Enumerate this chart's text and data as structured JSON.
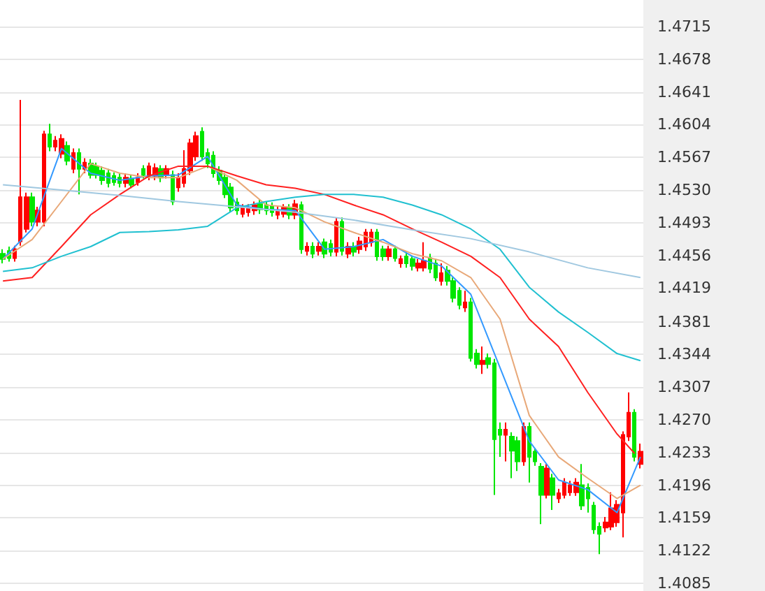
{
  "chart_data": {
    "type": "candlestick",
    "categories": [
      null,
      null,
      null,
      null,
      null,
      null,
      null,
      null,
      null,
      null,
      null,
      null,
      null,
      null,
      null,
      null,
      null,
      null,
      null,
      null,
      null,
      null,
      null,
      null,
      null,
      null,
      null,
      null,
      null,
      null,
      null,
      null,
      null,
      null,
      null,
      null,
      null,
      null,
      null,
      null,
      null,
      null,
      null,
      null,
      null,
      null,
      null,
      null,
      null,
      null,
      null,
      null,
      null,
      null,
      null,
      null,
      null,
      null,
      null,
      null,
      null,
      null,
      null,
      null,
      null,
      null,
      null,
      null,
      null,
      null,
      null,
      null,
      null,
      null,
      null,
      null,
      null,
      null,
      null,
      null,
      null,
      null,
      null,
      null,
      null,
      null,
      null,
      null,
      null,
      null,
      null,
      null,
      null,
      null,
      null,
      null,
      null,
      null,
      null,
      null,
      null,
      null,
      null,
      null,
      null,
      null,
      null,
      null,
      null,
      null
    ],
    "ohlc": [
      [
        1.4458,
        1.4463,
        1.4447,
        1.4452
      ],
      [
        1.4461,
        1.4466,
        1.4449,
        1.4453
      ],
      [
        1.4453,
        1.4467,
        1.4449,
        1.4463
      ],
      [
        1.4472,
        1.4632,
        1.4467,
        1.4522
      ],
      [
        1.4486,
        1.4527,
        1.4482,
        1.4522
      ],
      [
        1.4522,
        1.4527,
        1.4489,
        1.4494
      ],
      [
        1.4494,
        1.4511,
        1.4489,
        1.4507
      ],
      [
        1.4494,
        1.4597,
        1.4489,
        1.4593
      ],
      [
        1.4593,
        1.4605,
        1.4574,
        1.4579
      ],
      [
        1.4579,
        1.4591,
        1.4574,
        1.4586
      ],
      [
        1.4571,
        1.4593,
        1.4566,
        1.4588
      ],
      [
        1.458,
        1.4585,
        1.4558,
        1.4563
      ],
      [
        1.4554,
        1.4577,
        1.4549,
        1.4572
      ],
      [
        1.4572,
        1.4577,
        1.4525,
        1.4554
      ],
      [
        1.4554,
        1.4566,
        1.4549,
        1.4561
      ],
      [
        1.456,
        1.4565,
        1.4543,
        1.4547
      ],
      [
        1.4557,
        1.4561,
        1.4543,
        1.4547
      ],
      [
        1.4552,
        1.4557,
        1.4536,
        1.4541
      ],
      [
        1.4549,
        1.4554,
        1.4533,
        1.4538
      ],
      [
        1.4546,
        1.455,
        1.4535,
        1.4539
      ],
      [
        1.4544,
        1.4549,
        1.4533,
        1.4538
      ],
      [
        1.4538,
        1.4549,
        1.4533,
        1.4544
      ],
      [
        1.4543,
        1.4547,
        1.4532,
        1.4536
      ],
      [
        1.4539,
        1.4549,
        1.4535,
        1.4544
      ],
      [
        1.4554,
        1.4558,
        1.4543,
        1.4547
      ],
      [
        1.4546,
        1.4561,
        1.4541,
        1.4557
      ],
      [
        1.4546,
        1.456,
        1.4541,
        1.4555
      ],
      [
        1.4554,
        1.4558,
        1.4539,
        1.4544
      ],
      [
        1.4547,
        1.4558,
        1.4543,
        1.4554
      ],
      [
        1.4547,
        1.4552,
        1.4513,
        1.4517
      ],
      [
        1.4533,
        1.4549,
        1.4528,
        1.4544
      ],
      [
        1.4538,
        1.4575,
        1.4533,
        1.4554
      ],
      [
        1.4552,
        1.4588,
        1.4547,
        1.4583
      ],
      [
        1.4568,
        1.4596,
        1.4563,
        1.4591
      ],
      [
        1.4596,
        1.4601,
        1.4563,
        1.4568
      ],
      [
        1.4572,
        1.4577,
        1.4555,
        1.456
      ],
      [
        1.4569,
        1.4574,
        1.4544,
        1.4549
      ],
      [
        1.4552,
        1.4557,
        1.4536,
        1.4541
      ],
      [
        1.4544,
        1.4549,
        1.4521,
        1.4525
      ],
      [
        1.4533,
        1.4538,
        1.4505,
        1.451
      ],
      [
        1.4516,
        1.4521,
        1.4502,
        1.4507
      ],
      [
        1.4503,
        1.4514,
        1.4499,
        1.451
      ],
      [
        1.4505,
        1.4514,
        1.45,
        1.451
      ],
      [
        1.4507,
        1.4517,
        1.4502,
        1.4513
      ],
      [
        1.4514,
        1.4519,
        1.4503,
        1.4508
      ],
      [
        1.4513,
        1.4517,
        1.4502,
        1.4507
      ],
      [
        1.4511,
        1.4516,
        1.45,
        1.4505
      ],
      [
        1.4502,
        1.4511,
        1.4497,
        1.4507
      ],
      [
        1.4503,
        1.4514,
        1.4499,
        1.451
      ],
      [
        1.451,
        1.4514,
        1.4497,
        1.4502
      ],
      [
        1.4502,
        1.4519,
        1.4497,
        1.4514
      ],
      [
        1.4513,
        1.4517,
        1.4458,
        1.4463
      ],
      [
        1.4461,
        1.4471,
        1.4456,
        1.4466
      ],
      [
        1.4466,
        1.4471,
        1.4453,
        1.4458
      ],
      [
        1.4461,
        1.4471,
        1.4456,
        1.4466
      ],
      [
        1.4471,
        1.4475,
        1.4453,
        1.4458
      ],
      [
        1.4469,
        1.4474,
        1.4455,
        1.446
      ],
      [
        1.446,
        1.4499,
        1.4455,
        1.4494
      ],
      [
        1.4494,
        1.4499,
        1.4456,
        1.4461
      ],
      [
        1.4458,
        1.4471,
        1.4453,
        1.4466
      ],
      [
        1.4466,
        1.4471,
        1.4455,
        1.446
      ],
      [
        1.4463,
        1.4477,
        1.4458,
        1.4472
      ],
      [
        1.4466,
        1.4486,
        1.4461,
        1.4482
      ],
      [
        1.4471,
        1.4486,
        1.4466,
        1.4482
      ],
      [
        1.4482,
        1.4486,
        1.445,
        1.4455
      ],
      [
        1.4463,
        1.4467,
        1.445,
        1.4455
      ],
      [
        1.4455,
        1.4467,
        1.445,
        1.4463
      ],
      [
        1.4463,
        1.4467,
        1.4449,
        1.4453
      ],
      [
        1.4447,
        1.4456,
        1.4442,
        1.4452
      ],
      [
        1.4455,
        1.446,
        1.4442,
        1.4447
      ],
      [
        1.4452,
        1.4456,
        1.4439,
        1.4444
      ],
      [
        1.4442,
        1.4452,
        1.4438,
        1.4447
      ],
      [
        1.4442,
        1.4471,
        1.4438,
        1.445
      ],
      [
        1.4453,
        1.4458,
        1.4436,
        1.4441
      ],
      [
        1.4447,
        1.4452,
        1.4427,
        1.4431
      ],
      [
        1.4427,
        1.4447,
        1.4422,
        1.4436
      ],
      [
        1.4439,
        1.4444,
        1.4422,
        1.4427
      ],
      [
        1.4427,
        1.4431,
        1.4403,
        1.4408
      ],
      [
        1.4416,
        1.442,
        1.4395,
        1.44
      ],
      [
        1.4397,
        1.4416,
        1.4392,
        1.4403
      ],
      [
        1.4403,
        1.4408,
        1.4336,
        1.434
      ],
      [
        1.4345,
        1.435,
        1.4328,
        1.4333
      ],
      [
        1.4333,
        1.4353,
        1.4322,
        1.4337
      ],
      [
        1.434,
        1.4345,
        1.4328,
        1.4333
      ],
      [
        1.4334,
        1.4339,
        1.4185,
        1.4248
      ],
      [
        1.4259,
        1.4267,
        1.4228,
        1.4253
      ],
      [
        1.4253,
        1.4267,
        1.4223,
        1.4259
      ],
      [
        1.4251,
        1.4256,
        1.4204,
        1.4235
      ],
      [
        1.4246,
        1.4251,
        1.4212,
        1.4223
      ],
      [
        1.4223,
        1.4267,
        1.4218,
        1.4262
      ],
      [
        1.4262,
        1.4267,
        1.4199,
        1.4228
      ],
      [
        1.4234,
        1.4238,
        1.4218,
        1.4223
      ],
      [
        1.4217,
        1.4221,
        1.4152,
        1.4185
      ],
      [
        1.4185,
        1.422,
        1.4181,
        1.4215
      ],
      [
        1.4204,
        1.4209,
        1.4168,
        1.4185
      ],
      [
        1.4181,
        1.4192,
        1.4176,
        1.4187
      ],
      [
        1.4185,
        1.4204,
        1.4181,
        1.4199
      ],
      [
        1.4188,
        1.4201,
        1.4184,
        1.4196
      ],
      [
        1.4188,
        1.4204,
        1.4184,
        1.4199
      ],
      [
        1.4196,
        1.422,
        1.4168,
        1.4173
      ],
      [
        1.4193,
        1.4198,
        1.4165,
        1.4181
      ],
      [
        1.4173,
        1.4177,
        1.4141,
        1.4146
      ],
      [
        1.4149,
        1.4154,
        1.4118,
        1.4141
      ],
      [
        1.4148,
        1.416,
        1.4143,
        1.4154
      ],
      [
        1.4149,
        1.4188,
        1.4145,
        1.417
      ],
      [
        1.4154,
        1.4179,
        1.4149,
        1.4174
      ],
      [
        1.4165,
        1.4257,
        1.4137,
        1.4253
      ],
      [
        1.4251,
        1.4301,
        1.4246,
        1.4278
      ],
      [
        1.4278,
        1.4282,
        1.4223,
        1.4228
      ],
      [
        1.422,
        1.4243,
        1.4215,
        1.4234
      ]
    ],
    "colors": [
      "#00e600",
      "#00e600",
      "#ff0000",
      "#ff0000",
      "#ff0000",
      "#00e600",
      "#ff0000",
      "#ff0000",
      "#00e600",
      "#ff0000",
      "#ff0000",
      "#00e600",
      "#ff0000",
      "#00e600",
      "#ff0000",
      "#00e600",
      "#00e600",
      "#00e600",
      "#00e600",
      "#00e600",
      "#00e600",
      "#ff0000",
      "#00e600",
      "#ff0000",
      "#00e600",
      "#ff0000",
      "#ff0000",
      "#00e600",
      "#ff0000",
      "#00e600",
      "#ff0000",
      "#ff0000",
      "#ff0000",
      "#ff0000",
      "#00e600",
      "#00e600",
      "#00e600",
      "#00e600",
      "#00e600",
      "#00e600",
      "#00e600",
      "#ff0000",
      "#ff0000",
      "#ff0000",
      "#00e600",
      "#00e600",
      "#00e600",
      "#ff0000",
      "#ff0000",
      "#00e600",
      "#ff0000",
      "#00e600",
      "#ff0000",
      "#00e600",
      "#ff0000",
      "#00e600",
      "#00e600",
      "#ff0000",
      "#00e600",
      "#ff0000",
      "#00e600",
      "#ff0000",
      "#ff0000",
      "#ff0000",
      "#00e600",
      "#00e600",
      "#ff0000",
      "#00e600",
      "#ff0000",
      "#00e600",
      "#00e600",
      "#ff0000",
      "#ff0000",
      "#00e600",
      "#00e600",
      "#ff0000",
      "#00e600",
      "#00e600",
      "#00e600",
      "#ff0000",
      "#00e600",
      "#00e600",
      "#ff0000",
      "#00e600",
      "#00e600",
      "#00e600",
      "#ff0000",
      "#00e600",
      "#00e600",
      "#ff0000",
      "#00e600",
      "#00e600",
      "#00e600",
      "#ff0000",
      "#00e600",
      "#ff0000",
      "#ff0000",
      "#ff0000",
      "#ff0000",
      "#00e600",
      "#00e600",
      "#00e600",
      "#00e600",
      "#ff0000",
      "#ff0000",
      "#ff0000",
      "#ff0000",
      "#ff0000",
      "#00e600",
      "#ff0000"
    ],
    "series": [
      {
        "type": "line",
        "color": "#3399ff",
        "values": [
          1.4452,
          null,
          null,
          null,
          null,
          1.4486,
          null,
          null,
          null,
          null,
          1.4577,
          null,
          null,
          null,
          null,
          1.4549,
          null,
          null,
          null,
          null,
          1.4541,
          null,
          null,
          null,
          null,
          1.4546,
          null,
          null,
          null,
          null,
          1.4547,
          null,
          null,
          null,
          null,
          1.4568,
          null,
          null,
          null,
          null,
          1.4513,
          null,
          null,
          null,
          null,
          1.4508,
          null,
          null,
          null,
          null,
          1.4507,
          null,
          null,
          null,
          null,
          1.4463,
          null,
          null,
          null,
          null,
          1.4466,
          null,
          null,
          null,
          null,
          1.4474,
          null,
          null,
          null,
          null,
          1.4455,
          null,
          null,
          null,
          null,
          1.4444,
          null,
          null,
          null,
          null,
          1.4412,
          null,
          null,
          null,
          null,
          1.4329,
          null,
          null,
          null,
          null,
          1.4246,
          null,
          null,
          null,
          null,
          1.4202,
          null,
          null,
          null,
          null,
          1.4191,
          null,
          null,
          null,
          null,
          1.4165,
          null,
          null,
          null,
          1.4228
        ]
      },
      {
        "type": "line",
        "color": "#e8a878",
        "values": [
          1.4452,
          null,
          null,
          null,
          null,
          1.4474,
          null,
          null,
          null,
          null,
          1.4517,
          null,
          null,
          null,
          null,
          1.456,
          null,
          null,
          null,
          null,
          1.4549,
          null,
          null,
          null,
          null,
          1.4544,
          null,
          null,
          null,
          null,
          1.4544,
          null,
          null,
          null,
          null,
          1.4557,
          null,
          null,
          null,
          null,
          1.4541,
          null,
          null,
          null,
          null,
          1.4513,
          null,
          null,
          null,
          null,
          1.451,
          null,
          null,
          null,
          null,
          1.4494,
          null,
          null,
          null,
          null,
          1.4482,
          null,
          null,
          null,
          null,
          1.4471,
          null,
          null,
          null,
          null,
          1.4458,
          null,
          null,
          null,
          null,
          1.445,
          null,
          null,
          null,
          null,
          1.4431,
          null,
          null,
          null,
          null,
          1.4384,
          null,
          null,
          null,
          null,
          1.4275,
          null,
          null,
          null,
          null,
          1.4228,
          null,
          null,
          null,
          null,
          1.4204,
          null,
          null,
          null,
          null,
          1.4181,
          null,
          null,
          null,
          1.4196
        ]
      },
      {
        "type": "line",
        "color": "#ff2020",
        "values": [
          1.4427,
          null,
          null,
          null,
          null,
          1.4431,
          null,
          null,
          null,
          null,
          1.4466,
          null,
          null,
          null,
          null,
          1.4502,
          null,
          null,
          null,
          null,
          1.4525,
          null,
          null,
          null,
          null,
          1.4546,
          null,
          null,
          null,
          null,
          1.4557,
          null,
          null,
          null,
          null,
          1.4557,
          null,
          null,
          null,
          null,
          1.4546,
          null,
          null,
          null,
          null,
          1.4536,
          null,
          null,
          null,
          null,
          1.4532,
          null,
          null,
          null,
          null,
          1.4525,
          null,
          null,
          null,
          null,
          1.4513,
          null,
          null,
          null,
          null,
          1.4502,
          null,
          null,
          null,
          null,
          1.4486,
          null,
          null,
          null,
          null,
          1.4471,
          null,
          null,
          null,
          null,
          1.4455,
          null,
          null,
          null,
          null,
          1.4431,
          null,
          null,
          null,
          null,
          1.4384,
          null,
          null,
          null,
          null,
          1.4353,
          null,
          null,
          null,
          null,
          1.4301,
          null,
          null,
          null,
          null,
          1.4254,
          null,
          null,
          1.4232,
          null
        ]
      },
      {
        "type": "line",
        "color": "#20c0d0",
        "values": [
          1.4438,
          null,
          null,
          null,
          null,
          1.4442,
          null,
          null,
          null,
          null,
          1.4455,
          null,
          null,
          null,
          null,
          1.4466,
          null,
          null,
          null,
          null,
          1.4482,
          null,
          null,
          null,
          null,
          1.4483,
          null,
          null,
          null,
          null,
          1.4485,
          null,
          null,
          null,
          null,
          1.4489,
          null,
          null,
          null,
          null,
          1.451,
          null,
          null,
          null,
          null,
          1.4517,
          null,
          null,
          null,
          null,
          1.4522,
          null,
          null,
          null,
          null,
          1.4525,
          null,
          null,
          null,
          null,
          1.4525,
          null,
          null,
          null,
          null,
          1.4522,
          null,
          null,
          null,
          null,
          1.4513,
          null,
          null,
          null,
          null,
          1.4502,
          null,
          null,
          null,
          null,
          1.4486,
          null,
          null,
          null,
          null,
          1.4463,
          null,
          null,
          null,
          null,
          1.442,
          null,
          null,
          null,
          null,
          1.4392,
          null,
          null,
          null,
          null,
          1.4369,
          null,
          null,
          null,
          null,
          1.4345,
          null,
          null,
          null,
          1.4337
        ]
      },
      {
        "type": "line",
        "color": "#a0c8e0",
        "values": [
          1.4536,
          null,
          null,
          null,
          null,
          null,
          null,
          null,
          null,
          null,
          1.453,
          null,
          null,
          null,
          null,
          null,
          null,
          null,
          null,
          null,
          1.4524,
          null,
          null,
          null,
          null,
          null,
          null,
          null,
          null,
          null,
          1.4517,
          null,
          null,
          null,
          null,
          null,
          null,
          null,
          null,
          null,
          1.4511,
          null,
          null,
          null,
          null,
          null,
          null,
          null,
          null,
          null,
          1.4505,
          null,
          null,
          null,
          null,
          null,
          null,
          null,
          null,
          null,
          1.4496,
          null,
          null,
          null,
          null,
          null,
          null,
          null,
          null,
          null,
          1.4485,
          null,
          null,
          null,
          null,
          null,
          null,
          null,
          null,
          null,
          1.4475,
          null,
          null,
          null,
          null,
          null,
          null,
          null,
          null,
          null,
          1.446,
          null,
          null,
          null,
          null,
          null,
          null,
          null,
          null,
          null,
          1.4442,
          null,
          null,
          null,
          null,
          null,
          null,
          null,
          null,
          1.4431
        ]
      }
    ],
    "ylim": [
      1.4085,
      1.4715
    ],
    "yticks": [
      1.4085,
      1.4122,
      1.4159,
      1.4196,
      1.4233,
      {
        "value": 1.427,
        "label": "1.4270"
      },
      1.4307,
      1.4344,
      1.4381,
      1.4419,
      1.4456,
      1.4493,
      {
        "value": 1.453,
        "label": "1.4530"
      },
      1.4567,
      1.4604,
      1.4641,
      1.4678,
      1.4715
    ],
    "grid": "y",
    "tick_labels": "y"
  }
}
